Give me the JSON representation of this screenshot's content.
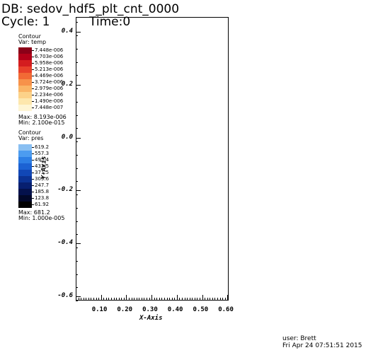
{
  "header": {
    "db": "DB: sedov_hdf5_plt_cnt_0000",
    "cycle": "Cycle: 1",
    "time": "Time:0"
  },
  "legend_temp": {
    "title": "Contour",
    "var": "Var: temp",
    "levels": [
      "7.448e-006",
      "6.703e-006",
      "5.958e-006",
      "5.213e-006",
      "4.469e-006",
      "3.724e-006",
      "2.979e-006",
      "2.234e-006",
      "1.490e-006",
      "7.448e-007"
    ],
    "colors": [
      "#8b0018",
      "#b30019",
      "#d41d1f",
      "#e8412a",
      "#f26a35",
      "#f7924a",
      "#fab566",
      "#fcd289",
      "#fde7ad",
      "#fef5d4"
    ],
    "max": "Max: 8.193e-006",
    "min": "Min: 2.100e-015"
  },
  "legend_pres": {
    "title": "Contour",
    "var": "Var: pres",
    "levels": [
      "619.2",
      "557.3",
      "495.4",
      "433.5",
      "371.5",
      "309.6",
      "247.7",
      "185.8",
      "123.8",
      "61.92"
    ],
    "colors": [
      "#89bff2",
      "#4c9cf0",
      "#2d7fe5",
      "#1c62d3",
      "#1147b6",
      "#0b3294",
      "#071f70",
      "#04114c",
      "#020829",
      "#000000"
    ],
    "max": "Max: 681.2",
    "min": "Min: 1.000e-005"
  },
  "axes": {
    "y_ticks": [
      "0.4",
      "0.2",
      "0.0",
      "-0.2",
      "-0.4",
      "-0.6"
    ],
    "x_ticks": [
      "0.10",
      "0.20",
      "0.30",
      "0.40",
      "0.50",
      "0.60"
    ],
    "x_label": "X-Axis",
    "y_label": "Y-Axis"
  },
  "footer": {
    "user": "user: Brett",
    "date": "Fri Apr 24 07:51:51 2015"
  }
}
